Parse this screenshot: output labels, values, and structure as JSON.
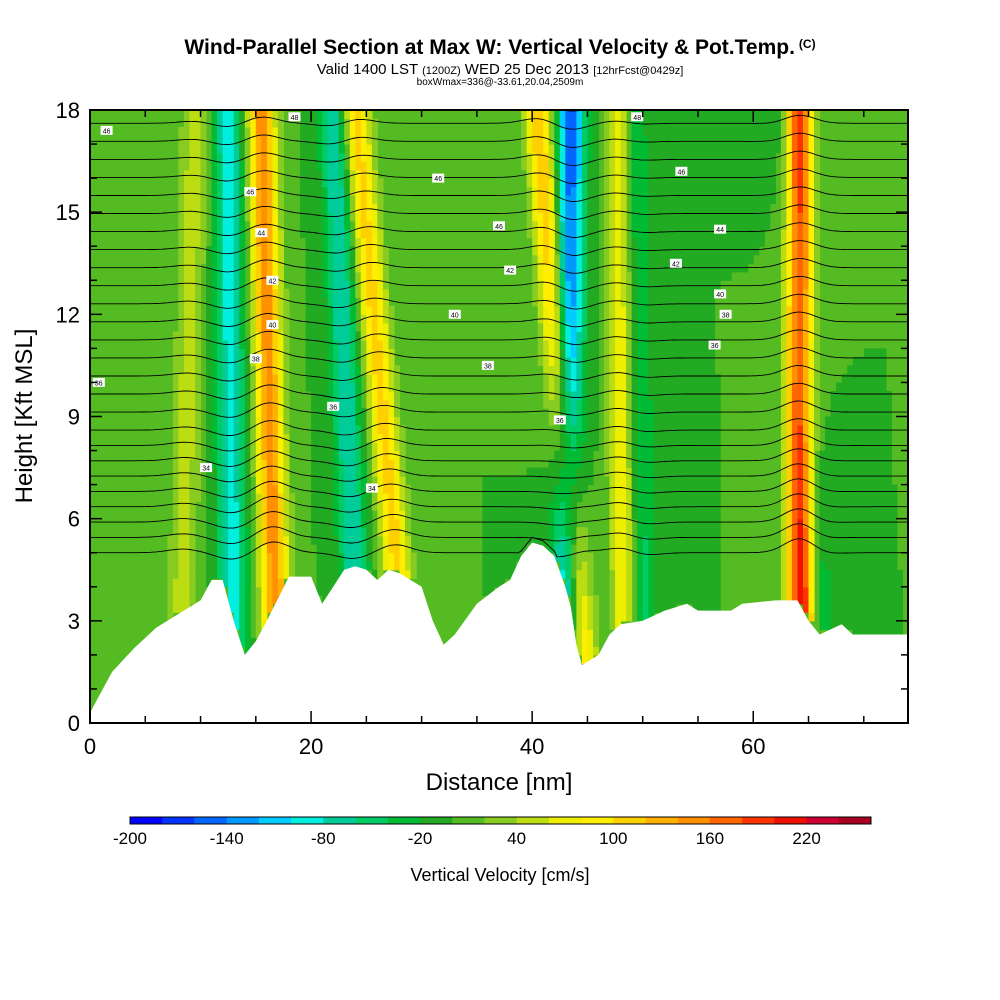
{
  "title": {
    "main": "Wind-Parallel Section at Max W: Vertical Velocity & Pot.Temp.",
    "copyright": "(C)",
    "valid_prefix": "Valid 1400 LST",
    "valid_utc": "(1200Z)",
    "valid_date": "WED 25 Dec 2013",
    "forecast": "[12hrFcst@0429z]",
    "info": "boxWmax=336@-33.61,20.04,2509m"
  },
  "chart_data": {
    "type": "heatmap",
    "title": "Wind-Parallel Section at Max W: Vertical Velocity & Pot.Temp.",
    "xlabel": "Distance [nm]",
    "ylabel": "Height [Kft MSL]",
    "xlim": [
      0,
      74
    ],
    "ylim": [
      0,
      18
    ],
    "x_ticks": [
      0,
      20,
      40,
      60
    ],
    "y_ticks": [
      0,
      3,
      6,
      9,
      12,
      15,
      18
    ],
    "colorbar": {
      "label": "Vertical Velocity [cm/s]",
      "min": -200,
      "max": 260,
      "step": 20,
      "tick_labels": [
        -200,
        -140,
        -80,
        -20,
        40,
        100,
        160,
        220
      ],
      "colors": [
        "#0000ff",
        "#0033ff",
        "#0066ff",
        "#0099ff",
        "#00ccff",
        "#00eedd",
        "#00cc99",
        "#00cc66",
        "#00bb33",
        "#22aa22",
        "#55bb22",
        "#88cc22",
        "#bbdd11",
        "#eeee00",
        "#ffee00",
        "#ffd000",
        "#ffb000",
        "#ff9000",
        "#ff6600",
        "#ff3300",
        "#ee1100",
        "#cc0033",
        "#aa0022"
      ]
    },
    "updraft_bands": [
      {
        "x_bottom": 17.0,
        "x_top": 15.5,
        "peak": 150
      },
      {
        "x_bottom": 29.0,
        "x_top": 24.0,
        "peak": 110
      },
      {
        "x_bottom": 45.0,
        "x_top": 40.5,
        "peak": 120
      },
      {
        "x_bottom": 64.5,
        "x_top": 64.0,
        "peak": 230
      },
      {
        "x_bottom": 48.5,
        "x_top": 48.0,
        "peak": 90
      },
      {
        "x_bottom": 8.0,
        "x_top": 9.5,
        "peak": 50
      }
    ],
    "downdraft_bands": [
      {
        "x_bottom": 13.0,
        "x_top": 12.5,
        "peak": -90
      },
      {
        "x_bottom": 24.5,
        "x_top": 22.0,
        "peak": -80
      },
      {
        "x_bottom": 43.0,
        "x_top": 43.5,
        "peak": -150
      },
      {
        "x_bottom": 50.0,
        "x_top": 49.0,
        "peak": -60
      },
      {
        "x_bottom": 66.5,
        "x_top": 63.0,
        "peak": -60
      }
    ],
    "terrain_kft": [
      [
        0,
        0.3
      ],
      [
        2,
        1.5
      ],
      [
        4,
        2.2
      ],
      [
        6,
        2.8
      ],
      [
        8,
        3.2
      ],
      [
        10,
        3.6
      ],
      [
        11,
        4.2
      ],
      [
        12,
        4.2
      ],
      [
        13,
        3.0
      ],
      [
        14,
        2.0
      ],
      [
        15,
        2.4
      ],
      [
        16,
        3.0
      ],
      [
        18,
        4.3
      ],
      [
        19,
        4.3
      ],
      [
        20,
        4.3
      ],
      [
        21,
        3.5
      ],
      [
        22,
        4.0
      ],
      [
        23,
        4.5
      ],
      [
        24,
        4.6
      ],
      [
        25,
        4.5
      ],
      [
        26,
        4.2
      ],
      [
        27,
        4.5
      ],
      [
        28,
        4.4
      ],
      [
        30,
        4.0
      ],
      [
        31,
        3.0
      ],
      [
        32,
        2.3
      ],
      [
        33,
        2.6
      ],
      [
        35,
        3.5
      ],
      [
        37,
        4.0
      ],
      [
        38,
        4.2
      ],
      [
        39,
        4.9
      ],
      [
        40,
        5.3
      ],
      [
        41,
        5.2
      ],
      [
        42,
        4.9
      ],
      [
        43,
        4.0
      ],
      [
        43.5,
        3.4
      ],
      [
        44,
        2.3
      ],
      [
        44.5,
        1.7
      ],
      [
        46,
        2.0
      ],
      [
        47,
        2.6
      ],
      [
        48,
        2.9
      ],
      [
        50,
        3.0
      ],
      [
        52,
        3.3
      ],
      [
        54,
        3.5
      ],
      [
        55,
        3.3
      ],
      [
        58,
        3.3
      ],
      [
        59,
        3.5
      ],
      [
        62,
        3.6
      ],
      [
        64,
        3.6
      ],
      [
        65,
        3.0
      ],
      [
        66,
        2.6
      ],
      [
        68,
        2.9
      ],
      [
        69,
        2.6
      ],
      [
        72,
        2.6
      ],
      [
        74,
        2.6
      ]
    ],
    "contour_labels": [
      {
        "x": 1.5,
        "y": 17.4,
        "label": "46"
      },
      {
        "x": 18.5,
        "y": 17.8,
        "label": "48"
      },
      {
        "x": 14.5,
        "y": 15.6,
        "label": "46"
      },
      {
        "x": 15.5,
        "y": 14.4,
        "label": "44"
      },
      {
        "x": 16.5,
        "y": 13.0,
        "label": "42"
      },
      {
        "x": 16.5,
        "y": 11.7,
        "label": "40"
      },
      {
        "x": 15.0,
        "y": 10.7,
        "label": "38"
      },
      {
        "x": 0.8,
        "y": 10.0,
        "label": "36"
      },
      {
        "x": 22.0,
        "y": 9.3,
        "label": "36"
      },
      {
        "x": 10.5,
        "y": 7.5,
        "label": "34"
      },
      {
        "x": 25.5,
        "y": 6.9,
        "label": "34"
      },
      {
        "x": 31.5,
        "y": 16.0,
        "label": "46"
      },
      {
        "x": 37.0,
        "y": 14.6,
        "label": "46"
      },
      {
        "x": 38.0,
        "y": 13.3,
        "label": "42"
      },
      {
        "x": 33.0,
        "y": 12.0,
        "label": "40"
      },
      {
        "x": 36.0,
        "y": 10.5,
        "label": "38"
      },
      {
        "x": 42.5,
        "y": 8.9,
        "label": "36"
      },
      {
        "x": 49.5,
        "y": 17.8,
        "label": "48"
      },
      {
        "x": 53.5,
        "y": 16.2,
        "label": "46"
      },
      {
        "x": 57.0,
        "y": 14.5,
        "label": "44"
      },
      {
        "x": 53.0,
        "y": 13.5,
        "label": "42"
      },
      {
        "x": 57.0,
        "y": 12.6,
        "label": "40"
      },
      {
        "x": 57.5,
        "y": 12.0,
        "label": "38"
      },
      {
        "x": 56.5,
        "y": 11.1,
        "label": "36"
      }
    ]
  }
}
